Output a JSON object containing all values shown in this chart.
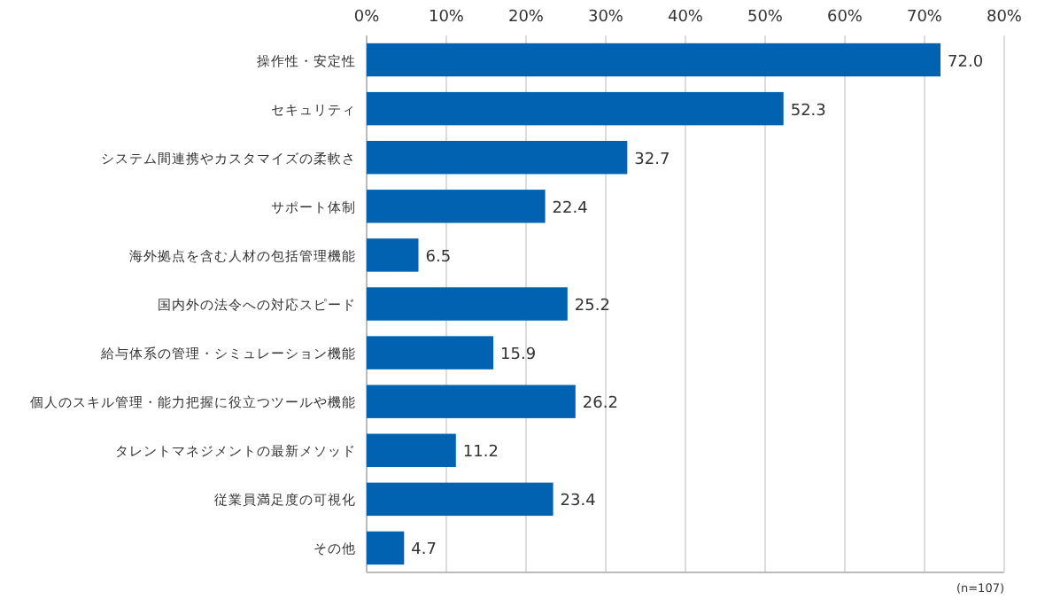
{
  "chart_data": {
    "type": "bar",
    "orientation": "horizontal",
    "categories": [
      "操作性・安定性",
      "セキュリティ",
      "システム間連携やカスタマイズの柔軟さ",
      "サポート体制",
      "海外拠点を含む人材の包括管理機能",
      "国内外の法令への対応スピード",
      "給与体系の管理・シミュレーション機能",
      "個人のスキル管理・能力把握に役立つツールや機能",
      "タレントマネジメントの最新メソッド",
      "従業員満足度の可視化",
      "その他"
    ],
    "values": [
      72.0,
      52.3,
      32.7,
      22.4,
      6.5,
      25.2,
      15.9,
      26.2,
      11.2,
      23.4,
      4.7
    ],
    "value_labels": [
      "72.0",
      "52.3",
      "32.7",
      "22.4",
      "6.5",
      "25.2",
      "15.9",
      "26.2",
      "11.2",
      "23.4",
      "4.7"
    ],
    "color": "#0062b1",
    "xlim": [
      0,
      80
    ],
    "xticks": [
      {
        "value": 0,
        "label": "0%"
      },
      {
        "value": 10,
        "label": "10%"
      },
      {
        "value": 20,
        "label": "20%"
      },
      {
        "value": 30,
        "label": "30%"
      },
      {
        "value": 40,
        "label": "40%"
      },
      {
        "value": 50,
        "label": "50%"
      },
      {
        "value": 60,
        "label": "60%"
      },
      {
        "value": 70,
        "label": "70%"
      },
      {
        "value": 80,
        "label": "80%"
      }
    ],
    "grid": "x",
    "annotations": [
      "(n=107)"
    ]
  }
}
